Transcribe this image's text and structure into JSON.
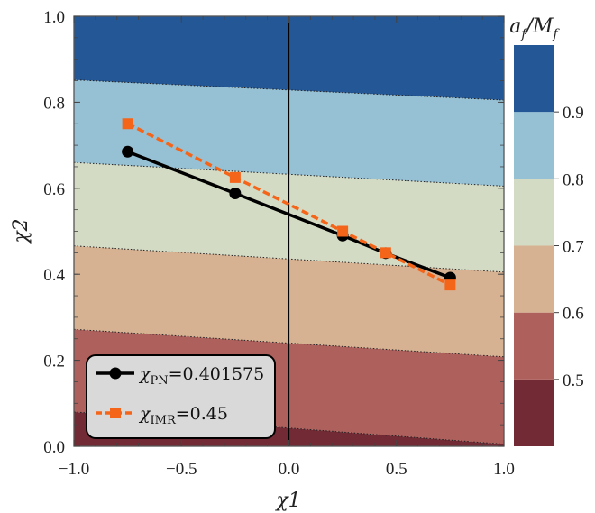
{
  "chart_data": {
    "type": "contour",
    "xlabel": "χ1",
    "ylabel": "χ2",
    "xlim": [
      -1.0,
      1.0
    ],
    "ylim": [
      0.0,
      1.0
    ],
    "xticks": [
      -1.0,
      -0.5,
      0.0,
      0.5,
      1.0
    ],
    "xtick_labels": [
      "−1.0",
      "−0.5",
      "0.0",
      "0.5",
      "1.0"
    ],
    "yticks": [
      0.0,
      0.2,
      0.4,
      0.6,
      0.8,
      1.0
    ],
    "ytick_labels": [
      "0.0",
      "0.2",
      "0.4",
      "0.6",
      "0.8",
      "1.0"
    ],
    "vertical_line_x": 0.0,
    "colorbar": {
      "title": "a_f/M_f",
      "title_main": "a",
      "title_sub1": "f",
      "title_mid": "/M",
      "title_sub2": "f",
      "levels": [
        0.4,
        0.5,
        0.6,
        0.7,
        0.8,
        0.9,
        1.0
      ],
      "tick_values": [
        0.5,
        0.6,
        0.7,
        0.8,
        0.9
      ],
      "tick_labels": [
        "0.5",
        "0.6",
        "0.7",
        "0.8",
        "0.9"
      ],
      "colors": [
        "#722a34",
        "#ae605c",
        "#d7b292",
        "#d4dbc5",
        "#96c0d3",
        "#235796"
      ]
    },
    "contour_lines": [
      {
        "level": 0.5,
        "y_at_xmin": 0.08,
        "y_at_xmax": 0.005
      },
      {
        "level": 0.6,
        "y_at_xmin": 0.272,
        "y_at_xmax": 0.208
      },
      {
        "level": 0.7,
        "y_at_xmin": 0.466,
        "y_at_xmax": 0.405
      },
      {
        "level": 0.8,
        "y_at_xmin": 0.66,
        "y_at_xmax": 0.605
      },
      {
        "level": 0.9,
        "y_at_xmin": 0.852,
        "y_at_xmax": 0.805
      }
    ],
    "series": [
      {
        "name_main": "χ",
        "name_sub": "PN",
        "name_value": "=0.401575",
        "color": "#000000",
        "marker": "circle",
        "dashed": false,
        "x": [
          -0.75,
          -0.25,
          0.25,
          0.45,
          0.75
        ],
        "y": [
          0.685,
          0.588,
          0.49,
          0.449,
          0.392
        ]
      },
      {
        "name_main": "χ",
        "name_sub": "IMR",
        "name_value": "=0.45",
        "color": "#f4651a",
        "marker": "square",
        "dashed": true,
        "x": [
          -0.75,
          -0.25,
          0.25,
          0.45,
          0.75
        ],
        "y": [
          0.75,
          0.625,
          0.5,
          0.45,
          0.375
        ]
      }
    ],
    "legend_position": "bottom-left"
  }
}
